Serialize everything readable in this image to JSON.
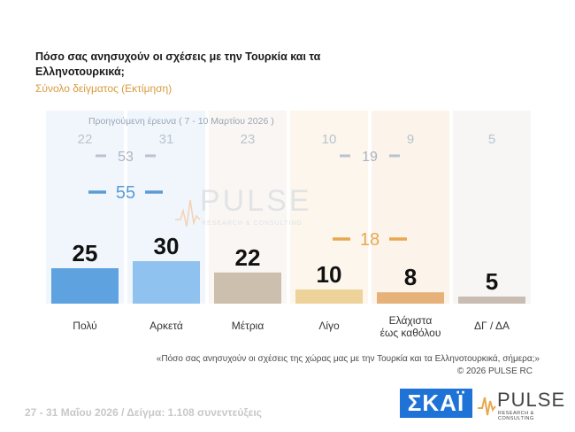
{
  "header": {
    "title": "Πόσο σας ανησυχούν οι σχέσεις με την Τουρκία και τα Ελληνοτουρκικά;",
    "subtitle": "Σύνολο δείγματος (Εκτίμηση)"
  },
  "chart_data": {
    "type": "bar",
    "categories": [
      "Πολύ",
      "Αρκετά",
      "Μέτρια",
      "Λίγο",
      "Ελάχιστα έως καθόλου",
      "ΔΓ / ΔΑ"
    ],
    "category_lines": [
      [
        "Πολύ"
      ],
      [
        "Αρκετά"
      ],
      [
        "Μέτρια"
      ],
      [
        "Λίγο"
      ],
      [
        "Ελάχιστα",
        "έως καθόλου"
      ],
      [
        "ΔΓ / ΔΑ"
      ]
    ],
    "values": [
      25,
      30,
      22,
      10,
      8,
      5
    ],
    "previous_values": [
      22,
      31,
      23,
      10,
      9,
      5
    ],
    "previous_label": "Προηγούμενη έρευνα ( 7 - 10 Μαρτίου 2026 )",
    "groups": [
      {
        "value": 55,
        "previous": 53,
        "members": [
          0,
          1
        ],
        "color": "#5b9bd5"
      },
      {
        "value": 18,
        "previous": 19,
        "members": [
          3,
          4
        ],
        "color": "#e8a84e"
      }
    ],
    "colors": [
      "#5ea2e0",
      "#8fc2ee",
      "#cdbfae",
      "#edd39a",
      "#e6b27a",
      "#c8bcb3"
    ],
    "column_shades": [
      "#eef4fc",
      "#eef4fc",
      "#f9f5f1",
      "#fcf5ea",
      "#fcf1e6",
      "#f6f4f2"
    ],
    "ylim": [
      0,
      100
    ]
  },
  "watermark": {
    "word": "PULSE",
    "sub": "RESEARCH & CONSULTING"
  },
  "caption": "«Πόσο σας ανησυχούν οι σχέσεις της χώρας μας με την Τουρκία και τα Ελληνοτουρκικά, σήμερα;»",
  "copyright": "©  2026  PULSE RC",
  "footer": "27 - 31  Μαΐου 2026  /  Δείγμα:  1.108 συνεντεύξεις",
  "logos": {
    "skai": "ΣΚΑΪ",
    "pulse": "PULSE",
    "pulse_sub": "RESEARCH & CONSULTING"
  }
}
